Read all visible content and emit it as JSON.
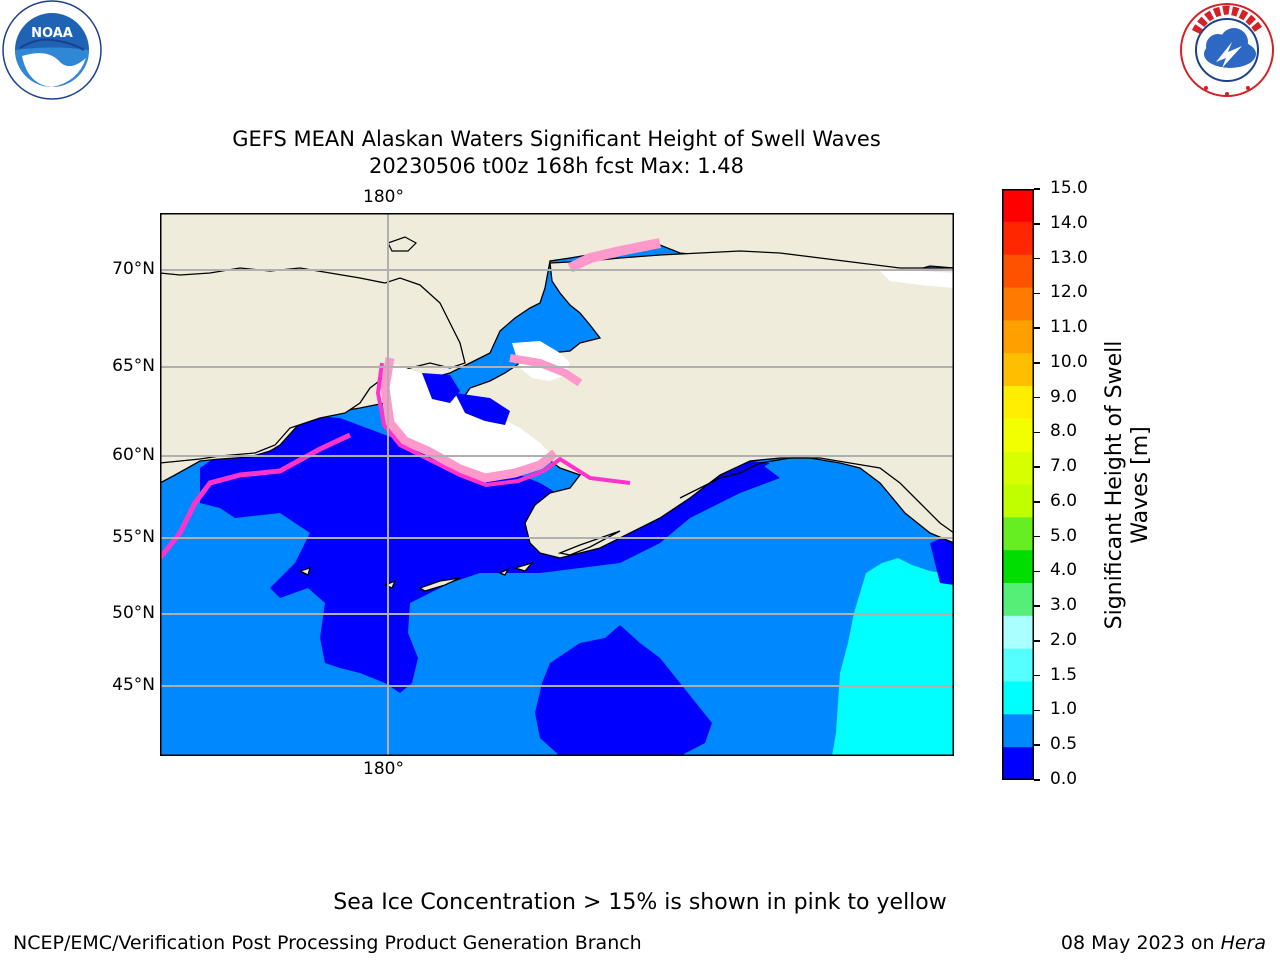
{
  "header": {
    "left_logo_text": "NOAA",
    "left_logo_ring_text": "NATIONAL OCEANIC AND ATMOSPHERIC ADMINISTRATION · U.S. DEPARTMENT OF COMMERCE",
    "right_logo_ring_text": "NATIONAL WEATHER SERVICE"
  },
  "title": {
    "line1": "GEFS MEAN Alaskan Waters Significant Height of Swell Waves",
    "line2": "20230506 t00z 168h fcst   Max: 1.48"
  },
  "map": {
    "lat_labels": [
      "70°N",
      "65°N",
      "60°N",
      "55°N",
      "50°N",
      "45°N"
    ],
    "lon_label_top": "180°",
    "lon_label_bottom": "180°",
    "colors": {
      "land": "#efecdc",
      "sea_ice_white": "#ffffff",
      "ice_pink": "#ff99cc",
      "ice_magenta": "#ff33cc",
      "gridline": "#b0b0b0"
    }
  },
  "colorbar": {
    "label_line1": "Significant Height of Swell",
    "label_line2": "Waves [m]",
    "ticks": [
      "15.0",
      "14.0",
      "13.0",
      "12.0",
      "11.0",
      "10.0",
      "9.0",
      "8.0",
      "7.0",
      "6.0",
      "5.0",
      "4.0",
      "3.0",
      "2.0",
      "1.5",
      "1.0",
      "0.5",
      "0.0"
    ],
    "colors_top_to_bottom": [
      "#ff0000",
      "#ff2600",
      "#ff5200",
      "#ff7a00",
      "#ff9f00",
      "#ffbf00",
      "#ffee00",
      "#f2ff00",
      "#d8ff00",
      "#c0ff00",
      "#66ee22",
      "#00dd00",
      "#55ee77",
      "#aaffff",
      "#55ffff",
      "#00ffff",
      "#0088ff",
      "#0000ff"
    ]
  },
  "footer": {
    "note": "Sea Ice Concentration > 15% is shown in pink to yellow",
    "credit": "NCEP/EMC/Verification Post Processing Product Generation Branch",
    "date": "08 May 2023 on ",
    "machine": "Hera"
  }
}
